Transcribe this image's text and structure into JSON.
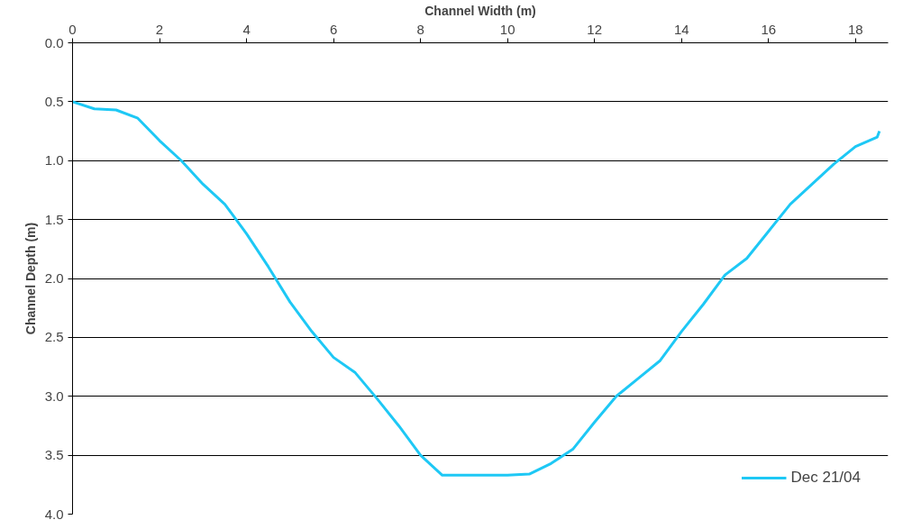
{
  "chart_data": {
    "type": "line",
    "xlabel": "Channel Width (m)",
    "ylabel": "Channel Depth (m)",
    "x": [
      0,
      0.5,
      1,
      1.5,
      2,
      2.5,
      3,
      3.5,
      4,
      4.5,
      5,
      5.5,
      6,
      6.5,
      7,
      7.5,
      8,
      8.5,
      9,
      9.5,
      10,
      10.5,
      11,
      11.5,
      12,
      12.5,
      13,
      13.5,
      14,
      14.5,
      15,
      15.5,
      16,
      16.5,
      17,
      17.5,
      18,
      18.5,
      18.55
    ],
    "series": [
      {
        "name": "Dec 21/04",
        "color": "#1ec8f5",
        "values": [
          0.5,
          0.56,
          0.57,
          0.64,
          0.83,
          1.0,
          1.2,
          1.37,
          1.62,
          1.9,
          2.2,
          2.45,
          2.67,
          2.8,
          3.02,
          3.25,
          3.5,
          3.67,
          3.67,
          3.67,
          3.67,
          3.66,
          3.57,
          3.45,
          3.22,
          3.0,
          2.85,
          2.7,
          2.45,
          2.22,
          1.97,
          1.83,
          1.6,
          1.37,
          1.2,
          1.03,
          0.88,
          0.8,
          0.75
        ]
      }
    ],
    "xlim": [
      0,
      18.75
    ],
    "xticks": [
      0,
      2,
      4,
      6,
      8,
      10,
      12,
      14,
      16,
      18
    ],
    "ylim": [
      4.0,
      0.0
    ],
    "yticks": [
      {
        "value": 0,
        "label": "0.0"
      },
      {
        "value": 0.5,
        "label": "0.5"
      },
      {
        "value": 1,
        "label": "1.0"
      },
      {
        "value": 1.5,
        "label": "1.5"
      },
      {
        "value": 2,
        "label": "2.0"
      },
      {
        "value": 2.5,
        "label": "2.5"
      },
      {
        "value": 3,
        "label": "3.0"
      },
      {
        "value": 3.5,
        "label": "3.5"
      },
      {
        "value": 4,
        "label": "4.0"
      }
    ],
    "grid": "y",
    "legend": "bottom right",
    "marker": "none",
    "line_style": "solid"
  }
}
